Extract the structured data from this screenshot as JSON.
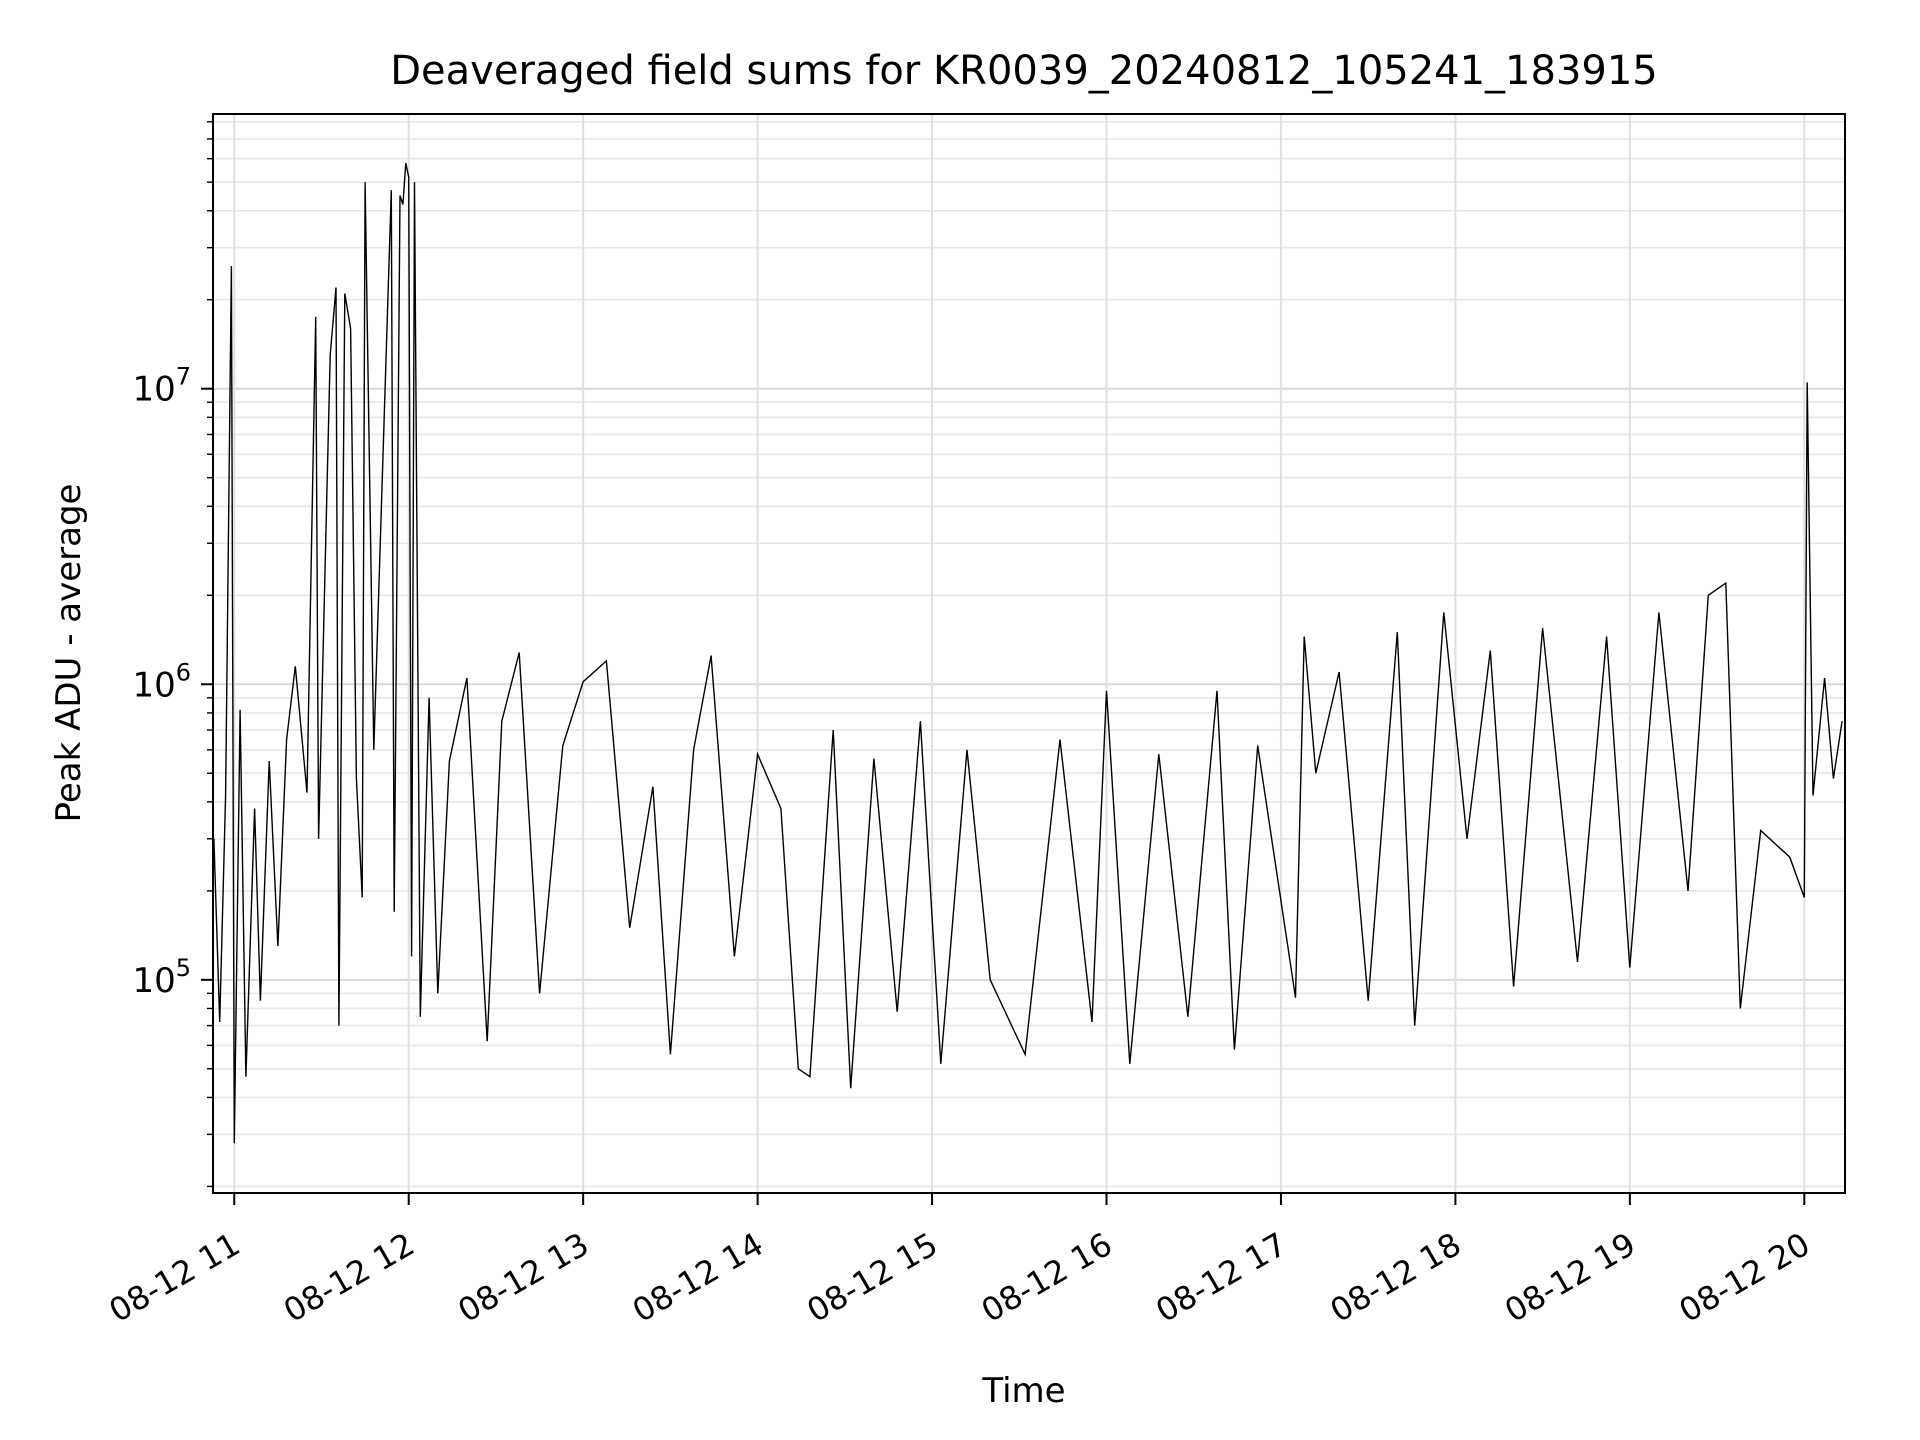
{
  "chart_data": {
    "type": "line",
    "title": "Deaveraged field sums for KR0039_20240812_105241_183915",
    "xlabel": "Time",
    "ylabel": "Peak ADU - average",
    "y_scale": "log",
    "ylim": [
      19000,
      85000000
    ],
    "xlim": [
      "2024-08-12 10:52:41",
      "2024-08-12 20:14:00"
    ],
    "grid": true,
    "legend": "none",
    "line_color": "#000000",
    "x_ticks": [
      {
        "label": "08-12 11",
        "time": "2024-08-12 11:00"
      },
      {
        "label": "08-12 12",
        "time": "2024-08-12 12:00"
      },
      {
        "label": "08-12 13",
        "time": "2024-08-12 13:00"
      },
      {
        "label": "08-12 14",
        "time": "2024-08-12 14:00"
      },
      {
        "label": "08-12 15",
        "time": "2024-08-12 15:00"
      },
      {
        "label": "08-12 16",
        "time": "2024-08-12 16:00"
      },
      {
        "label": "08-12 17",
        "time": "2024-08-12 17:00"
      },
      {
        "label": "08-12 18",
        "time": "2024-08-12 18:00"
      },
      {
        "label": "08-12 19",
        "time": "2024-08-12 19:00"
      },
      {
        "label": "08-12 20",
        "time": "2024-08-12 20:00"
      }
    ],
    "y_ticks": [
      {
        "base": "10",
        "exp": "5",
        "value": 100000
      },
      {
        "base": "10",
        "exp": "6",
        "value": 1000000
      },
      {
        "base": "10",
        "exp": "7",
        "value": 10000000
      }
    ],
    "series": [
      {
        "points": [
          [
            "2024-08-12 10:53",
            300000
          ],
          [
            "2024-08-12 10:55",
            72000
          ],
          [
            "2024-08-12 10:57",
            420000
          ],
          [
            "2024-08-12 10:59",
            26000000
          ],
          [
            "2024-08-12 11:00",
            28000
          ],
          [
            "2024-08-12 11:02",
            820000
          ],
          [
            "2024-08-12 11:04",
            47000
          ],
          [
            "2024-08-12 11:07",
            380000
          ],
          [
            "2024-08-12 11:09",
            85000
          ],
          [
            "2024-08-12 11:12",
            550000
          ],
          [
            "2024-08-12 11:15",
            130000
          ],
          [
            "2024-08-12 11:18",
            650000
          ],
          [
            "2024-08-12 11:21",
            1150000
          ],
          [
            "2024-08-12 11:25",
            430000
          ],
          [
            "2024-08-12 11:28",
            17500000
          ],
          [
            "2024-08-12 11:29",
            300000
          ],
          [
            "2024-08-12 11:33",
            13000000
          ],
          [
            "2024-08-12 11:35",
            22000000
          ],
          [
            "2024-08-12 11:36",
            70000
          ],
          [
            "2024-08-12 11:38",
            21000000
          ],
          [
            "2024-08-12 11:40",
            16000000
          ],
          [
            "2024-08-12 11:42",
            480000
          ],
          [
            "2024-08-12 11:44",
            190000
          ],
          [
            "2024-08-12 11:45",
            50000000
          ],
          [
            "2024-08-12 11:48",
            600000
          ],
          [
            "2024-08-12 11:54",
            47000000
          ],
          [
            "2024-08-12 11:55",
            170000
          ],
          [
            "2024-08-12 11:57",
            45000000
          ],
          [
            "2024-08-12 11:58",
            42000000
          ],
          [
            "2024-08-12 11:59",
            58000000
          ],
          [
            "2024-08-12 12:00",
            52000000
          ],
          [
            "2024-08-12 12:01",
            120000
          ],
          [
            "2024-08-12 12:02",
            50000000
          ],
          [
            "2024-08-12 12:04",
            75000
          ],
          [
            "2024-08-12 12:07",
            900000
          ],
          [
            "2024-08-12 12:10",
            90000
          ],
          [
            "2024-08-12 12:14",
            550000
          ],
          [
            "2024-08-12 12:20",
            1050000
          ],
          [
            "2024-08-12 12:27",
            62000
          ],
          [
            "2024-08-12 12:32",
            750000
          ],
          [
            "2024-08-12 12:38",
            1280000
          ],
          [
            "2024-08-12 12:45",
            90000
          ],
          [
            "2024-08-12 12:53",
            620000
          ],
          [
            "2024-08-12 13:00",
            1020000
          ],
          [
            "2024-08-12 13:08",
            1200000
          ],
          [
            "2024-08-12 13:16",
            150000
          ],
          [
            "2024-08-12 13:24",
            450000
          ],
          [
            "2024-08-12 13:30",
            56000
          ],
          [
            "2024-08-12 13:38",
            600000
          ],
          [
            "2024-08-12 13:44",
            1250000
          ],
          [
            "2024-08-12 13:52",
            120000
          ],
          [
            "2024-08-12 14:00",
            580000
          ],
          [
            "2024-08-12 14:08",
            380000
          ],
          [
            "2024-08-12 14:14",
            50000
          ],
          [
            "2024-08-12 14:18",
            47000
          ],
          [
            "2024-08-12 14:26",
            700000
          ],
          [
            "2024-08-12 14:32",
            43000
          ],
          [
            "2024-08-12 14:40",
            560000
          ],
          [
            "2024-08-12 14:48",
            78000
          ],
          [
            "2024-08-12 14:56",
            750000
          ],
          [
            "2024-08-12 15:03",
            52000
          ],
          [
            "2024-08-12 15:12",
            600000
          ],
          [
            "2024-08-12 15:20",
            100000
          ],
          [
            "2024-08-12 15:32",
            56000
          ],
          [
            "2024-08-12 15:44",
            650000
          ],
          [
            "2024-08-12 15:55",
            72000
          ],
          [
            "2024-08-12 16:00",
            950000
          ],
          [
            "2024-08-12 16:08",
            52000
          ],
          [
            "2024-08-12 16:18",
            580000
          ],
          [
            "2024-08-12 16:28",
            75000
          ],
          [
            "2024-08-12 16:38",
            950000
          ],
          [
            "2024-08-12 16:44",
            58000
          ],
          [
            "2024-08-12 16:52",
            620000
          ],
          [
            "2024-08-12 17:05",
            87000
          ],
          [
            "2024-08-12 17:08",
            1450000
          ],
          [
            "2024-08-12 17:12",
            500000
          ],
          [
            "2024-08-12 17:20",
            1100000
          ],
          [
            "2024-08-12 17:30",
            85000
          ],
          [
            "2024-08-12 17:40",
            1500000
          ],
          [
            "2024-08-12 17:46",
            70000
          ],
          [
            "2024-08-12 17:56",
            1750000
          ],
          [
            "2024-08-12 18:04",
            300000
          ],
          [
            "2024-08-12 18:12",
            1300000
          ],
          [
            "2024-08-12 18:20",
            95000
          ],
          [
            "2024-08-12 18:30",
            1550000
          ],
          [
            "2024-08-12 18:42",
            115000
          ],
          [
            "2024-08-12 18:52",
            1450000
          ],
          [
            "2024-08-12 19:00",
            110000
          ],
          [
            "2024-08-12 19:10",
            1750000
          ],
          [
            "2024-08-12 19:20",
            200000
          ],
          [
            "2024-08-12 19:27",
            2000000
          ],
          [
            "2024-08-12 19:33",
            2200000
          ],
          [
            "2024-08-12 19:38",
            80000
          ],
          [
            "2024-08-12 19:45",
            320000
          ],
          [
            "2024-08-12 19:55",
            260000
          ],
          [
            "2024-08-12 20:00",
            190000
          ],
          [
            "2024-08-12 20:01",
            10500000
          ],
          [
            "2024-08-12 20:03",
            420000
          ],
          [
            "2024-08-12 20:07",
            1050000
          ],
          [
            "2024-08-12 20:10",
            480000
          ],
          [
            "2024-08-12 20:13",
            750000
          ]
        ]
      }
    ]
  }
}
